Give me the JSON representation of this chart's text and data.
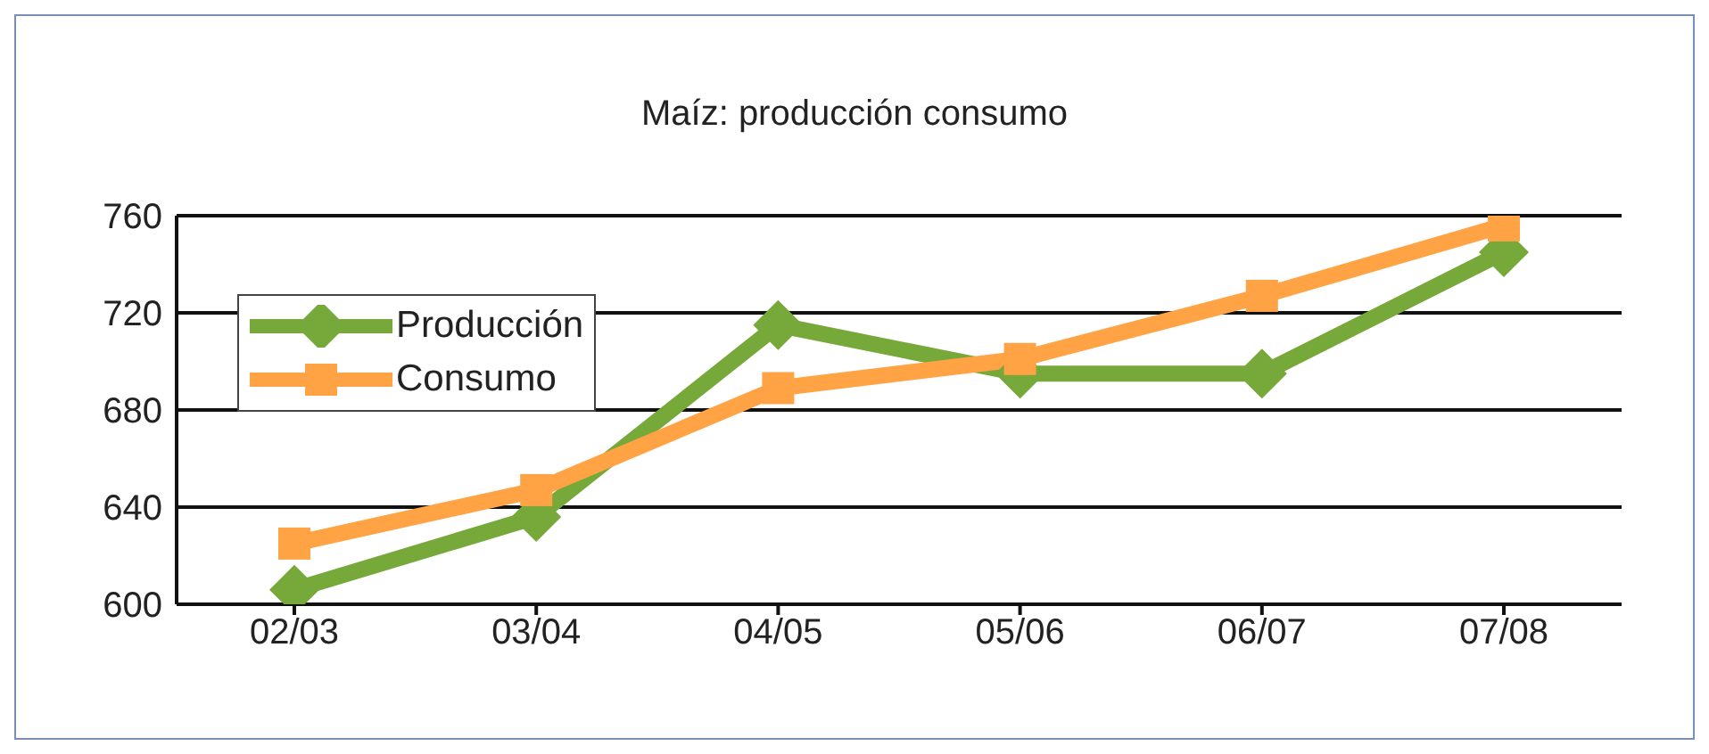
{
  "chart_data": {
    "type": "line",
    "title": "Maíz: producción consumo",
    "categories": [
      "02/03",
      "03/04",
      "04/05",
      "05/06",
      "06/07",
      "07/08"
    ],
    "series": [
      {
        "name": "Producción",
        "color": "#77a83a",
        "marker": "diamond",
        "values": [
          606,
          636,
          715,
          695,
          695,
          745
        ]
      },
      {
        "name": "Consumo",
        "color": "#ffa345",
        "marker": "square",
        "values": [
          625,
          647,
          689,
          701,
          727,
          756
        ]
      }
    ],
    "ylim": [
      600,
      760
    ],
    "yticks": [
      600,
      640,
      680,
      720,
      760
    ],
    "grid": "y",
    "legend": "top left"
  }
}
